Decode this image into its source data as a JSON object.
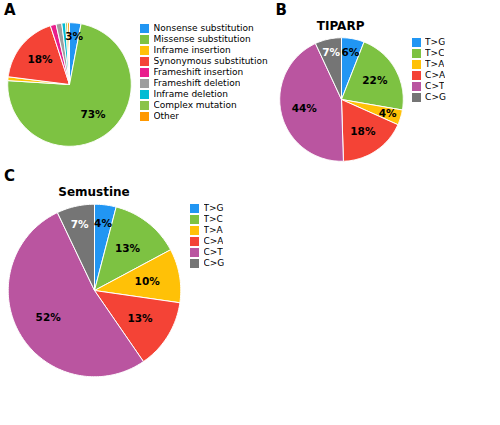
{
  "chart_data": [
    {
      "type": "pie",
      "annotations": [
        "A"
      ],
      "categories": [
        "Nonsense substitution",
        "Missense substitution",
        "Inframe insertion",
        "Synonymous substitution",
        "Frameshift insertion",
        "Frameshift deletion",
        "Inframe deletion",
        "Complex mutation",
        "Other"
      ],
      "values": [
        3,
        73,
        1,
        18,
        1.5,
        1.5,
        1,
        0.5,
        0.5
      ],
      "value_labels": [
        "3%",
        "73%",
        null,
        "18%",
        null,
        null,
        null,
        null,
        null
      ],
      "colors": [
        "#2196F3",
        "#7DC242",
        "#FFC107",
        "#F44336",
        "#E91E8C",
        "#9E9E9E",
        "#00BCD4",
        "#8BC34A",
        "#FF9800"
      ],
      "data_labels": true,
      "legend": "right"
    },
    {
      "type": "pie",
      "title": "TIPARP",
      "annotations": [
        "B"
      ],
      "categories": [
        "T>G",
        "T>C",
        "T>A",
        "C>A",
        "C>T",
        "C>G"
      ],
      "values": [
        6,
        22,
        4,
        18,
        44,
        7
      ],
      "value_labels": [
        "6%",
        "22%",
        "4%",
        "18%",
        "44%",
        "7%"
      ],
      "colors": [
        "#2196F3",
        "#7DC242",
        "#FFC107",
        "#F44336",
        "#BA55A0",
        "#757575"
      ],
      "data_labels": true,
      "legend": "right"
    },
    {
      "type": "pie",
      "title": "Semustine",
      "annotations": [
        "C"
      ],
      "categories": [
        "T>G",
        "T>C",
        "T>A",
        "C>A",
        "C>T",
        "C>G"
      ],
      "values": [
        4,
        13,
        10,
        13,
        52,
        7
      ],
      "value_labels": [
        "4%",
        "13%",
        "10%",
        "13%",
        "52%",
        "7%"
      ],
      "colors": [
        "#2196F3",
        "#7DC242",
        "#FFC107",
        "#F44336",
        "#BA55A0",
        "#757575"
      ],
      "data_labels": true,
      "legend": "right"
    }
  ]
}
